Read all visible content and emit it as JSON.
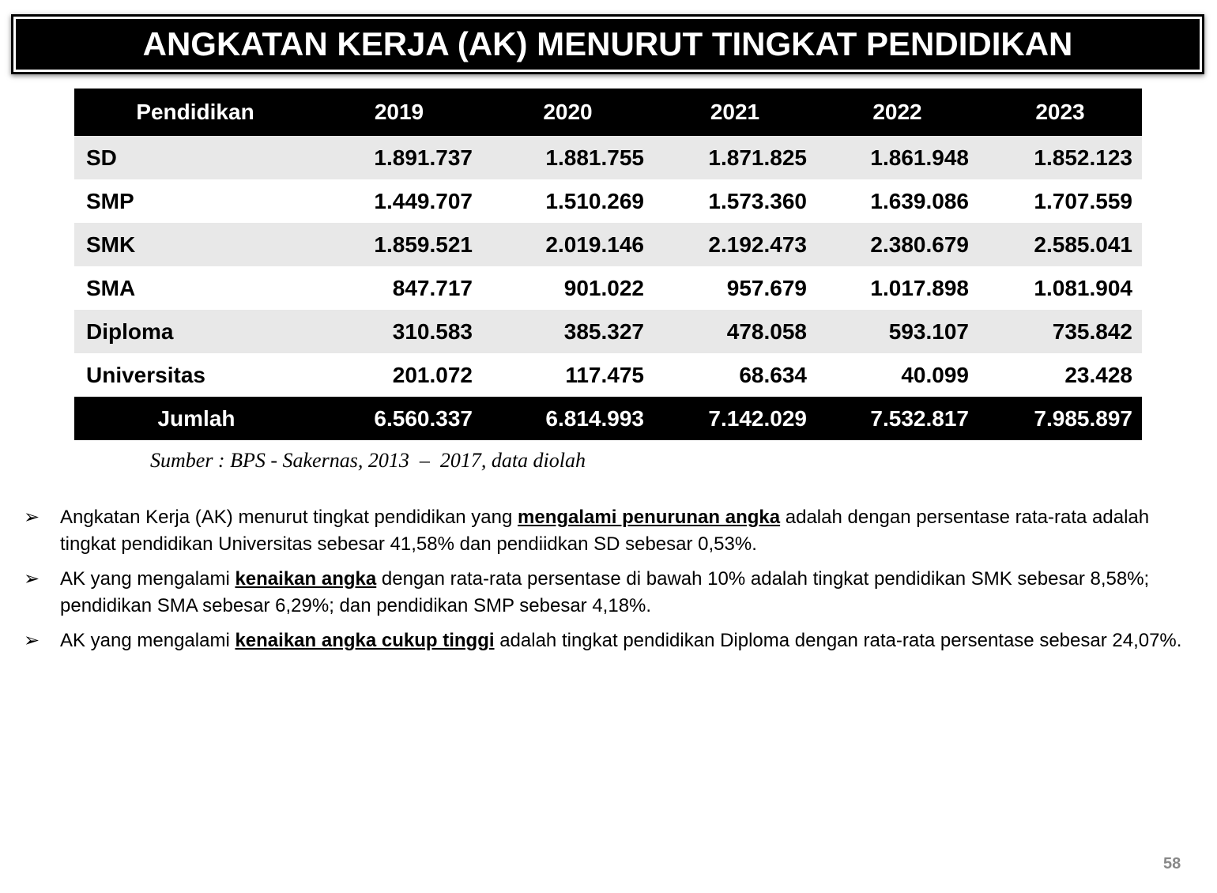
{
  "title": "ANGKATAN KERJA (AK) MENURUT TINGKAT PENDIDIKAN",
  "table": {
    "header": [
      "Pendidikan",
      "2019",
      "2020",
      "2021",
      "2022",
      "2023"
    ],
    "rows": [
      [
        "SD",
        "1.891.737",
        "1.881.755",
        "1.871.825",
        "1.861.948",
        "1.852.123"
      ],
      [
        "SMP",
        "1.449.707",
        "1.510.269",
        "1.573.360",
        "1.639.086",
        "1.707.559"
      ],
      [
        "SMK",
        "1.859.521",
        "2.019.146",
        "2.192.473",
        "2.380.679",
        "2.585.041"
      ],
      [
        "SMA",
        "847.717",
        "901.022",
        "957.679",
        "1.017.898",
        "1.081.904"
      ],
      [
        "Diploma",
        "310.583",
        "385.327",
        "478.058",
        "593.107",
        "735.842"
      ],
      [
        "Universitas",
        "201.072",
        "117.475",
        "68.634",
        "40.099",
        "23.428"
      ]
    ],
    "total": [
      "Jumlah",
      "6.560.337",
      "6.814.993",
      "7.142.029",
      "7.532.817",
      "7.985.897"
    ]
  },
  "source": "Sumber : BPS - Sakernas, 2013  –  2017, data diolah",
  "bullets": [
    [
      {
        "text": "Angkatan Kerja (AK) menurut tingkat pendidikan yang "
      },
      {
        "text": "mengalami penurunan angka",
        "emphasis": true
      },
      {
        "text": " adalah dengan persentase rata-rata adalah tingkat pendidikan Universitas sebesar 41,58% dan pendiidkan SD sebesar 0,53%."
      }
    ],
    [
      {
        "text": "AK yang mengalami "
      },
      {
        "text": "kenaikan angka",
        "emphasis": true
      },
      {
        "text": " dengan rata-rata persentase di bawah 10% adalah tingkat pendidikan SMK sebesar 8,58%; pendidikan SMA sebesar 6,29%; dan pendidikan SMP sebesar 4,18%."
      }
    ],
    [
      {
        "text": "AK yang mengalami "
      },
      {
        "text": "kenaikan angka cukup tinggi",
        "emphasis": true
      },
      {
        "text": " adalah tingkat pendidikan Diploma dengan rata-rata persentase sebesar 24,07%."
      }
    ]
  ],
  "page_number": "58"
}
